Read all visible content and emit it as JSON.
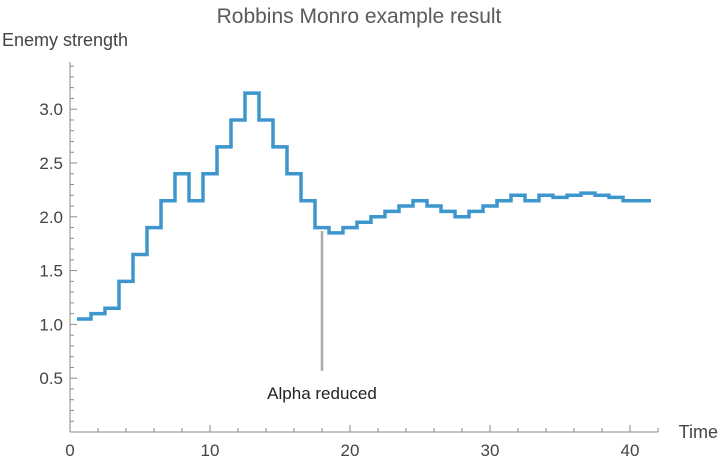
{
  "chart_data": {
    "type": "line",
    "step": true,
    "title": "Robbins Monro example result",
    "xlabel": "Time",
    "ylabel": "Enemy strength",
    "xlim": [
      0,
      42
    ],
    "ylim": [
      0,
      3.45
    ],
    "x_ticks": [
      0,
      10,
      20,
      30,
      40
    ],
    "x_tick_labels": [
      "0",
      "10",
      "20",
      "30",
      "40"
    ],
    "y_ticks": [
      0.5,
      1.0,
      1.5,
      2.0,
      2.5,
      3.0
    ],
    "y_tick_labels": [
      "0.5",
      "1.0",
      "1.5",
      "2.0",
      "2.5",
      "3.0"
    ],
    "grid": false,
    "series": [
      {
        "color": "#3d97cd",
        "x": [
          1,
          2,
          3,
          4,
          5,
          6,
          7,
          8,
          9,
          10,
          11,
          12,
          13,
          14,
          15,
          16,
          17,
          18,
          19,
          20,
          21,
          22,
          23,
          24,
          25,
          26,
          27,
          28,
          29,
          30,
          31,
          32,
          33,
          34,
          35,
          36,
          37,
          38,
          39,
          40,
          41
        ],
        "values": [
          1.05,
          1.1,
          1.15,
          1.4,
          1.65,
          1.9,
          2.15,
          2.4,
          2.15,
          2.4,
          2.65,
          2.9,
          3.15,
          2.9,
          2.65,
          2.4,
          2.15,
          1.9,
          1.85,
          1.9,
          1.95,
          2.0,
          2.05,
          2.1,
          2.15,
          2.1,
          2.05,
          2.0,
          2.05,
          2.1,
          2.15,
          2.2,
          2.15,
          2.2,
          2.18,
          2.2,
          2.22,
          2.2,
          2.18,
          2.15,
          2.15
        ]
      }
    ],
    "annotations": [
      {
        "text": "Alpha reduced",
        "x": 18,
        "y_from": 1.85,
        "y_to": 0.55,
        "color": "#aaaaaa"
      }
    ]
  }
}
